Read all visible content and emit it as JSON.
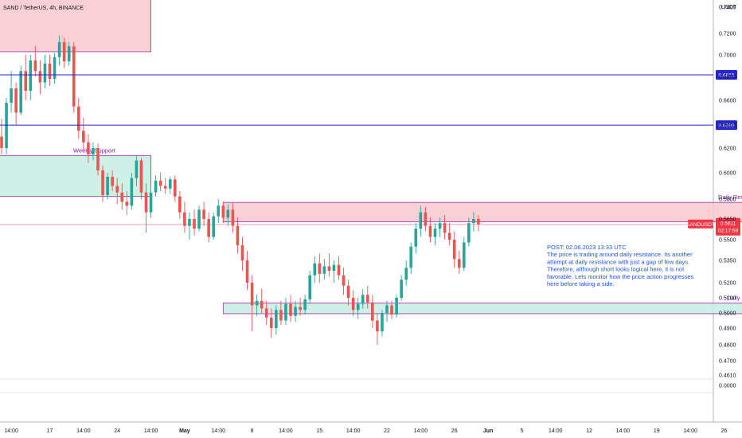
{
  "header": {
    "title": "SAND / TetherUS, 4h, BINANCE",
    "currency": "USDT"
  },
  "colors": {
    "up": "#26a69a",
    "down": "#ef5350",
    "resistance_fill": "#f8c8cc",
    "support_fill": "#c6ede2",
    "zone_border": "#9c27b0",
    "level_line": "#2424d6",
    "price_line": "#f7a9ad",
    "note": "#1e53e5"
  },
  "zones": [
    {
      "name": "top-resistance-zone",
      "label": "",
      "kind": "resistance",
      "top": 0.755,
      "bottom": 0.703,
      "start": -3,
      "end": 31
    },
    {
      "name": "weekly-support-zone",
      "label": "Weekly Support",
      "kind": "support",
      "top": 0.614,
      "bottom": 0.582,
      "start": -3,
      "end": 31
    },
    {
      "name": "daily-resistance-zone",
      "label": "Daily Resistance",
      "kind": "resistance",
      "top": 0.5775,
      "bottom": 0.563,
      "start": 46,
      "end": 158
    },
    {
      "name": "daily-support-zone",
      "label": "Daily Support",
      "kind": "support",
      "top": 0.5065,
      "bottom": 0.4995,
      "start": 46,
      "end": 158
    }
  ],
  "levels": [
    {
      "name": "level-06815",
      "value": 0.6815,
      "label": "0.6815"
    },
    {
      "name": "level-06399",
      "value": 0.6399,
      "label": "0.6399"
    }
  ],
  "current_price": {
    "symbol": "SANDUSDT",
    "value": 0.5611,
    "label": "0.5611",
    "countdown": "02:17:59"
  },
  "note": {
    "lines": [
      "POST: 02.06.2023 13:33 UTC",
      "The price is trading around daily resistance. Its another",
      "attempt at daily resistance with just a gap of few days.",
      "Therefore, although short looks logical here, it is not",
      "favorable. Lets monitor how the price action progresses",
      "here before taking a side."
    ]
  },
  "chart_data": {
    "type": "candlestick",
    "title": "SAND / TetherUS, 4h, BINANCE",
    "ylabel": "USDT",
    "y_ticks": [
      {
        "label": "0.7400",
        "value": 0.74
      },
      {
        "label": "0.7200",
        "value": 0.72
      },
      {
        "label": "0.7000",
        "value": 0.7
      },
      {
        "label": "0.6800",
        "value": 0.68
      },
      {
        "label": "0.6600",
        "value": 0.66
      },
      {
        "label": "0.6400",
        "value": 0.64
      },
      {
        "label": "0.6200",
        "value": 0.62
      },
      {
        "label": "0.6000",
        "value": 0.6
      },
      {
        "label": "0.5800",
        "value": 0.58
      },
      {
        "label": "0.5650",
        "value": 0.565
      },
      {
        "label": "0.5500",
        "value": 0.55
      },
      {
        "label": "0.5350",
        "value": 0.535
      },
      {
        "label": "0.5200",
        "value": 0.52
      },
      {
        "label": "0.5100",
        "value": 0.51
      },
      {
        "label": "0.5000",
        "value": 0.5
      },
      {
        "label": "0.4900",
        "value": 0.49
      },
      {
        "label": "0.4800",
        "value": 0.48
      },
      {
        "label": "0.4700",
        "value": 0.47
      },
      {
        "label": "0.4610",
        "value": 0.461
      },
      {
        "label": "0.0000",
        "value": 0.0
      }
    ],
    "x_ticks": [
      {
        "label": "14:00",
        "bar": 2
      },
      {
        "label": "17",
        "bar": 10
      },
      {
        "label": "14:00",
        "bar": 17
      },
      {
        "label": "24",
        "bar": 24
      },
      {
        "label": "14:00",
        "bar": 31
      },
      {
        "label": "May",
        "bar": 38,
        "bold": true
      },
      {
        "label": "14:00",
        "bar": 45
      },
      {
        "label": "8",
        "bar": 52
      },
      {
        "label": "14:00",
        "bar": 59
      },
      {
        "label": "15",
        "bar": 66
      },
      {
        "label": "14:00",
        "bar": 73
      },
      {
        "label": "22",
        "bar": 80
      },
      {
        "label": "14:00",
        "bar": 87
      },
      {
        "label": "26",
        "bar": 94
      },
      {
        "label": "Jun",
        "bar": 101,
        "bold": true
      },
      {
        "label": "5",
        "bar": 108
      },
      {
        "label": "14:00",
        "bar": 115
      },
      {
        "label": "12",
        "bar": 122
      },
      {
        "label": "14:00",
        "bar": 129
      },
      {
        "label": "19",
        "bar": 136
      },
      {
        "label": "14:00",
        "bar": 143
      },
      {
        "label": "26",
        "bar": 150
      }
    ],
    "candles": [
      [
        0.63,
        0.645,
        0.615,
        0.62
      ],
      [
        0.62,
        0.662,
        0.615,
        0.658
      ],
      [
        0.658,
        0.685,
        0.65,
        0.67
      ],
      [
        0.67,
        0.675,
        0.64,
        0.65
      ],
      [
        0.65,
        0.69,
        0.648,
        0.685
      ],
      [
        0.685,
        0.7,
        0.66,
        0.668
      ],
      [
        0.668,
        0.7,
        0.66,
        0.695
      ],
      [
        0.695,
        0.708,
        0.68,
        0.685
      ],
      [
        0.685,
        0.695,
        0.665,
        0.675
      ],
      [
        0.675,
        0.7,
        0.67,
        0.692
      ],
      [
        0.692,
        0.7,
        0.672,
        0.678
      ],
      [
        0.678,
        0.702,
        0.674,
        0.698
      ],
      [
        0.698,
        0.718,
        0.69,
        0.712
      ],
      [
        0.712,
        0.716,
        0.688,
        0.694
      ],
      [
        0.694,
        0.712,
        0.69,
        0.708
      ],
      [
        0.708,
        0.712,
        0.65,
        0.655
      ],
      [
        0.655,
        0.662,
        0.628,
        0.635
      ],
      [
        0.635,
        0.646,
        0.618,
        0.625
      ],
      [
        0.625,
        0.632,
        0.608,
        0.615
      ],
      [
        0.615,
        0.625,
        0.61,
        0.62
      ],
      [
        0.62,
        0.624,
        0.598,
        0.602
      ],
      [
        0.602,
        0.606,
        0.578,
        0.583
      ],
      [
        0.583,
        0.6,
        0.58,
        0.597
      ],
      [
        0.597,
        0.602,
        0.586,
        0.59
      ],
      [
        0.59,
        0.596,
        0.576,
        0.585
      ],
      [
        0.585,
        0.592,
        0.572,
        0.578
      ],
      [
        0.578,
        0.586,
        0.568,
        0.575
      ],
      [
        0.575,
        0.6,
        0.572,
        0.596
      ],
      [
        0.596,
        0.614,
        0.59,
        0.61
      ],
      [
        0.61,
        0.612,
        0.58,
        0.585
      ],
      [
        0.585,
        0.592,
        0.555,
        0.57
      ],
      [
        0.57,
        0.59,
        0.566,
        0.585
      ],
      [
        0.585,
        0.598,
        0.582,
        0.594
      ],
      [
        0.594,
        0.6,
        0.586,
        0.59
      ],
      [
        0.59,
        0.596,
        0.584,
        0.588
      ],
      [
        0.588,
        0.597,
        0.584,
        0.595
      ],
      [
        0.595,
        0.598,
        0.578,
        0.582
      ],
      [
        0.582,
        0.586,
        0.565,
        0.57
      ],
      [
        0.57,
        0.578,
        0.555,
        0.56
      ],
      [
        0.56,
        0.57,
        0.55,
        0.565
      ],
      [
        0.565,
        0.572,
        0.553,
        0.558
      ],
      [
        0.558,
        0.575,
        0.556,
        0.572
      ],
      [
        0.572,
        0.578,
        0.56,
        0.565
      ],
      [
        0.565,
        0.57,
        0.548,
        0.552
      ],
      [
        0.552,
        0.57,
        0.55,
        0.567
      ],
      [
        0.567,
        0.58,
        0.562,
        0.575
      ],
      [
        0.575,
        0.578,
        0.562,
        0.566
      ],
      [
        0.566,
        0.576,
        0.56,
        0.572
      ],
      [
        0.572,
        0.577,
        0.555,
        0.56
      ],
      [
        0.56,
        0.566,
        0.54,
        0.546
      ],
      [
        0.546,
        0.552,
        0.528,
        0.535
      ],
      [
        0.535,
        0.542,
        0.515,
        0.52
      ],
      [
        0.52,
        0.525,
        0.488,
        0.505
      ],
      [
        0.505,
        0.512,
        0.498,
        0.508
      ],
      [
        0.508,
        0.516,
        0.5,
        0.503
      ],
      [
        0.503,
        0.508,
        0.492,
        0.497
      ],
      [
        0.497,
        0.503,
        0.484,
        0.49
      ],
      [
        0.49,
        0.505,
        0.486,
        0.502
      ],
      [
        0.502,
        0.508,
        0.492,
        0.495
      ],
      [
        0.495,
        0.51,
        0.492,
        0.506
      ],
      [
        0.506,
        0.512,
        0.494,
        0.498
      ],
      [
        0.498,
        0.508,
        0.494,
        0.504
      ],
      [
        0.504,
        0.51,
        0.498,
        0.502
      ],
      [
        0.502,
        0.512,
        0.499,
        0.509
      ],
      [
        0.509,
        0.528,
        0.506,
        0.525
      ],
      [
        0.525,
        0.538,
        0.52,
        0.533
      ],
      [
        0.533,
        0.54,
        0.52,
        0.526
      ],
      [
        0.526,
        0.536,
        0.522,
        0.531
      ],
      [
        0.531,
        0.54,
        0.524,
        0.528
      ],
      [
        0.528,
        0.535,
        0.52,
        0.532
      ],
      [
        0.532,
        0.538,
        0.522,
        0.525
      ],
      [
        0.525,
        0.53,
        0.512,
        0.518
      ],
      [
        0.518,
        0.522,
        0.505,
        0.51
      ],
      [
        0.51,
        0.515,
        0.498,
        0.502
      ],
      [
        0.502,
        0.51,
        0.496,
        0.506
      ],
      [
        0.506,
        0.516,
        0.503,
        0.512
      ],
      [
        0.512,
        0.518,
        0.503,
        0.507
      ],
      [
        0.507,
        0.512,
        0.49,
        0.495
      ],
      [
        0.495,
        0.5,
        0.48,
        0.488
      ],
      [
        0.488,
        0.502,
        0.485,
        0.5
      ],
      [
        0.5,
        0.508,
        0.494,
        0.505
      ],
      [
        0.505,
        0.508,
        0.496,
        0.499
      ],
      [
        0.499,
        0.512,
        0.497,
        0.51
      ],
      [
        0.51,
        0.525,
        0.508,
        0.522
      ],
      [
        0.522,
        0.535,
        0.518,
        0.53
      ],
      [
        0.53,
        0.548,
        0.526,
        0.545
      ],
      [
        0.545,
        0.562,
        0.54,
        0.558
      ],
      [
        0.558,
        0.575,
        0.552,
        0.57
      ],
      [
        0.57,
        0.574,
        0.556,
        0.56
      ],
      [
        0.56,
        0.566,
        0.548,
        0.552
      ],
      [
        0.552,
        0.562,
        0.546,
        0.558
      ],
      [
        0.558,
        0.566,
        0.552,
        0.562
      ],
      [
        0.562,
        0.568,
        0.55,
        0.555
      ],
      [
        0.555,
        0.562,
        0.546,
        0.55
      ],
      [
        0.55,
        0.556,
        0.53,
        0.536
      ],
      [
        0.536,
        0.542,
        0.526,
        0.53
      ],
      [
        0.53,
        0.552,
        0.528,
        0.548
      ],
      [
        0.548,
        0.566,
        0.545,
        0.562
      ],
      [
        0.562,
        0.57,
        0.556,
        0.565
      ],
      [
        0.565,
        0.568,
        0.556,
        0.561
      ]
    ]
  }
}
